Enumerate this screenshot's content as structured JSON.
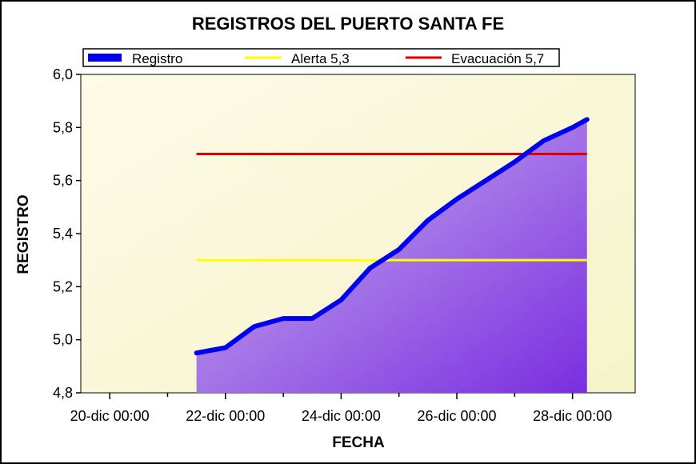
{
  "chart_data": {
    "type": "area",
    "title": "REGISTROS DEL PUERTO SANTA FE",
    "xlabel": "FECHA",
    "ylabel": "REGISTRO",
    "x_ticks": [
      "20-dic 00:00",
      "22-dic 00:00",
      "24-dic 00:00",
      "26-dic 00:00",
      "28-dic 00:00"
    ],
    "y_ticks": [
      "4,8",
      "5,0",
      "5,2",
      "5,4",
      "5,6",
      "5,8",
      "6,0"
    ],
    "ylim": [
      4.8,
      6.0
    ],
    "xlim": [
      "2019-12-19 12:00",
      "2019-12-29 02:00"
    ],
    "grid": false,
    "legend_position": "top",
    "series": [
      {
        "name": "Registro",
        "color": "#0000ee",
        "fill": "violet-gradient",
        "x": [
          "2019-12-21 12:00",
          "2019-12-22 00:00",
          "2019-12-22 12:00",
          "2019-12-23 00:00",
          "2019-12-23 12:00",
          "2019-12-24 00:00",
          "2019-12-24 12:00",
          "2019-12-25 00:00",
          "2019-12-25 12:00",
          "2019-12-26 00:00",
          "2019-12-26 12:00",
          "2019-12-27 00:00",
          "2019-12-27 12:00",
          "2019-12-28 00:00",
          "2019-12-28 06:00"
        ],
        "values": [
          4.95,
          4.97,
          5.05,
          5.08,
          5.08,
          5.15,
          5.27,
          5.34,
          5.45,
          5.53,
          5.6,
          5.67,
          5.75,
          5.8,
          5.83
        ]
      },
      {
        "name": "Alerta 5,3",
        "color": "#ffff00",
        "x": [
          "2019-12-21 12:00",
          "2019-12-28 06:00"
        ],
        "values": [
          5.3,
          5.3
        ]
      },
      {
        "name": "Evacuación 5,7",
        "color": "#dd0000",
        "x": [
          "2019-12-21 12:00",
          "2019-12-28 06:00"
        ],
        "values": [
          5.7,
          5.7
        ]
      }
    ]
  }
}
